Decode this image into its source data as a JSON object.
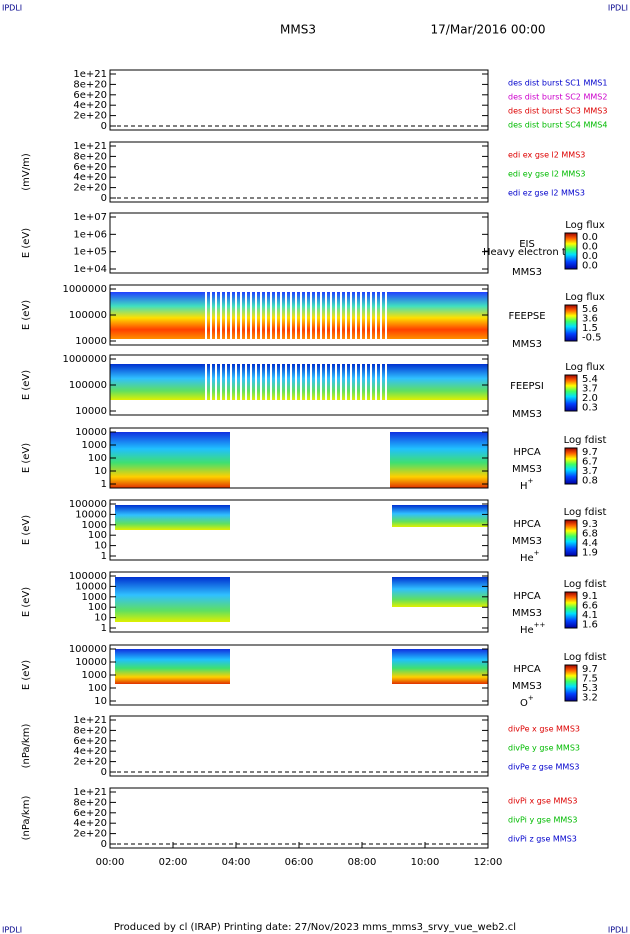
{
  "header": {
    "corner_left": "IPDLI",
    "corner_right": "IPDLI",
    "spacecraft": "MMS3",
    "date": "17/Mar/2016 00:00"
  },
  "panels": [
    {
      "ylabel": "",
      "yticks": [
        "1e+21",
        "8e+20",
        "6e+20",
        "4e+20",
        "2e+20",
        "0"
      ],
      "legend": [
        {
          "text": "des dist burst SC1 MMS1",
          "color": "#0000cc"
        },
        {
          "text": "des dist burst SC2 MMS2",
          "color": "#cc00cc"
        },
        {
          "text": "des dist burst SC3 MMS3",
          "color": "#dd0000"
        },
        {
          "text": "des dist burst SC4 MMS4",
          "color": "#00bb00"
        }
      ]
    },
    {
      "ylabel": "(mV/m)",
      "yticks": [
        "1e+21",
        "8e+20",
        "6e+20",
        "4e+20",
        "2e+20",
        "0"
      ],
      "legend": [
        {
          "text": "edi ex gse l2 MMS3",
          "color": "#dd0000"
        },
        {
          "text": "edi ey gse l2 MMS3",
          "color": "#00bb00"
        },
        {
          "text": "edi ez gse l2 MMS3",
          "color": "#0000cc"
        }
      ]
    },
    {
      "ylabel": "E (eV)",
      "yticks": [
        "1e+07",
        "1e+06",
        "1e+05",
        "1e+04"
      ],
      "side": [
        "EIS",
        "Heavy electron to",
        "MMS3"
      ],
      "colorbar": {
        "title": "Log flux",
        "labels": [
          "0.0",
          "0.0",
          "0.0",
          "0.0"
        ]
      }
    },
    {
      "ylabel": "E (eV)",
      "yticks": [
        "1000000",
        "100000",
        "10000"
      ],
      "side": [
        "FEEPSE",
        "MMS3"
      ],
      "colorbar": {
        "title": "Log flux",
        "labels": [
          "5.6",
          "3.6",
          "1.5",
          "-0.5"
        ]
      }
    },
    {
      "ylabel": "E (eV)",
      "yticks": [
        "1000000",
        "100000",
        "10000"
      ],
      "side": [
        "FEEPSI",
        "MMS3"
      ],
      "colorbar": {
        "title": "Log flux",
        "labels": [
          "5.4",
          "3.7",
          "2.0",
          "0.3"
        ]
      }
    },
    {
      "ylabel": "E (eV)",
      "yticks": [
        "10000",
        "1000",
        "100",
        "10",
        "1"
      ],
      "side": [
        "HPCA",
        "MMS3"
      ],
      "species": {
        "base": "H",
        "charge": "+"
      },
      "colorbar": {
        "title": "Log fdist",
        "labels": [
          "9.7",
          "6.7",
          "3.7",
          "0.8"
        ]
      }
    },
    {
      "ylabel": "E (eV)",
      "yticks": [
        "100000",
        "10000",
        "1000",
        "100",
        "10",
        "1"
      ],
      "side": [
        "HPCA",
        "MMS3"
      ],
      "species": {
        "base": "He",
        "charge": "+"
      },
      "colorbar": {
        "title": "Log fdist",
        "labels": [
          "9.3",
          "6.8",
          "4.4",
          "1.9"
        ]
      }
    },
    {
      "ylabel": "E (eV)",
      "yticks": [
        "100000",
        "10000",
        "1000",
        "100",
        "10",
        "1"
      ],
      "side": [
        "HPCA",
        "MMS3"
      ],
      "species": {
        "base": "He",
        "charge": "++"
      },
      "colorbar": {
        "title": "Log fdist",
        "labels": [
          "9.1",
          "6.6",
          "4.1",
          "1.6"
        ]
      }
    },
    {
      "ylabel": "E (eV)",
      "yticks": [
        "100000",
        "10000",
        "1000",
        "100",
        "10"
      ],
      "side": [
        "HPCA",
        "MMS3"
      ],
      "species": {
        "base": "O",
        "charge": "+"
      },
      "colorbar": {
        "title": "Log fdist",
        "labels": [
          "9.7",
          "7.5",
          "5.3",
          "3.2"
        ]
      }
    },
    {
      "ylabel": "(nPa/km)",
      "yticks": [
        "1e+21",
        "8e+20",
        "6e+20",
        "4e+20",
        "2e+20",
        "0"
      ],
      "legend": [
        {
          "text": "divPe x gse MMS3",
          "color": "#dd0000"
        },
        {
          "text": "divPe y gse MMS3",
          "color": "#00bb00"
        },
        {
          "text": "divPe z gse MMS3",
          "color": "#0000cc"
        }
      ]
    },
    {
      "ylabel": "(nPa/km)",
      "yticks": [
        "1e+21",
        "8e+20",
        "6e+20",
        "4e+20",
        "2e+20",
        "0"
      ],
      "legend": [
        {
          "text": "divPi x gse MMS3",
          "color": "#dd0000"
        },
        {
          "text": "divPi y gse MMS3",
          "color": "#00bb00"
        },
        {
          "text": "divPi z gse MMS3",
          "color": "#0000cc"
        }
      ]
    }
  ],
  "xticks": [
    "00:00",
    "02:00",
    "04:00",
    "06:00",
    "08:00",
    "10:00",
    "12:00"
  ],
  "footer": {
    "text": "Produced by cl (IRAP)   Printing date: 27/Nov/2023   mms_mms3_srvy_vue_web2.cl",
    "corner_left": "IPDLI",
    "corner_right": "IPDLI"
  }
}
